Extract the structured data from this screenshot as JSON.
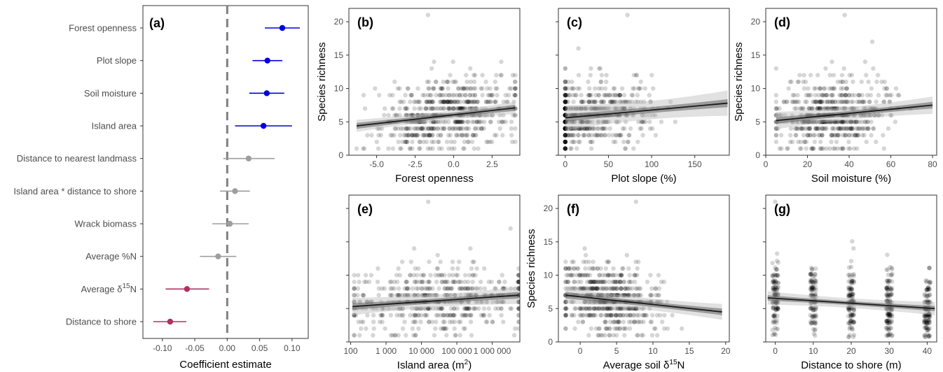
{
  "figure": {
    "background": "#ffffff",
    "point_color": "#000000",
    "ci_color": "#bdbdbd",
    "fit_color": "#1a1a1a"
  },
  "chart_data": [
    {
      "id": "a",
      "panel_label": "(a)",
      "type": "scatter",
      "subtype": "coefficient forest plot",
      "xlabel": "Coefficient estimate",
      "ylabel": "",
      "xlim": [
        -0.13,
        0.125
      ],
      "xticks": [
        -0.1,
        -0.05,
        0.0,
        0.05,
        0.1
      ],
      "xtick_labels": [
        "-0.10",
        "-0.05",
        "0.00",
        "0.05",
        "0.10"
      ],
      "zero_line": 0,
      "grid": false,
      "colors": {
        "positive": "#0000dd",
        "neutral": "#9e9e9e",
        "negative": "#b03060"
      },
      "rows": [
        {
          "label": "Forest openness",
          "label_html": "Forest openness",
          "estimate": 0.085,
          "low": 0.058,
          "high": 0.112,
          "group": "positive"
        },
        {
          "label": "Plot slope",
          "label_html": "Plot slope",
          "estimate": 0.062,
          "low": 0.039,
          "high": 0.085,
          "group": "positive"
        },
        {
          "label": "Soil moisture",
          "label_html": "Soil moisture",
          "estimate": 0.061,
          "low": 0.034,
          "high": 0.088,
          "group": "positive"
        },
        {
          "label": "Island area",
          "label_html": "Island area",
          "estimate": 0.056,
          "low": 0.012,
          "high": 0.1,
          "group": "positive"
        },
        {
          "label": "Distance to nearest landmass",
          "label_html": "Distance to nearest landmass",
          "estimate": 0.033,
          "low": -0.006,
          "high": 0.073,
          "group": "neutral"
        },
        {
          "label": "Island area * distance to shore",
          "label_html": "Island area * distance to shore",
          "estimate": 0.012,
          "low": -0.011,
          "high": 0.035,
          "group": "neutral"
        },
        {
          "label": "Wrack biomass",
          "label_html": "Wrack biomass",
          "estimate": 0.004,
          "low": -0.023,
          "high": 0.033,
          "group": "neutral"
        },
        {
          "label": "Average %N",
          "label_html": "Average %N",
          "estimate": -0.014,
          "low": -0.042,
          "high": 0.014,
          "group": "neutral"
        },
        {
          "label": "Average δ15N",
          "label_html": "Average δ<tspan dy='-6' font-size='10'>15</tspan><tspan dy='6'>N</tspan>",
          "estimate": -0.062,
          "low": -0.095,
          "high": -0.028,
          "group": "negative"
        },
        {
          "label": "Distance to shore",
          "label_html": "Distance to shore",
          "estimate": -0.088,
          "low": -0.114,
          "high": -0.063,
          "group": "negative"
        }
      ]
    },
    {
      "id": "b",
      "panel_label": "(b)",
      "type": "scatter",
      "xlabel": "Forest openness",
      "xlabel_html": "Forest openness",
      "ylabel": "Species richness",
      "show_ylabel": true,
      "show_yticks": true,
      "xlim": [
        -6.8,
        4.3
      ],
      "ylim": [
        0,
        22
      ],
      "xticks": [
        -5,
        -2.5,
        0,
        2.5
      ],
      "xtick_labels": [
        "-5.0",
        "-2.5",
        "0.0",
        "2.5"
      ],
      "yticks": [
        0,
        5,
        10,
        15,
        20
      ],
      "ytick_labels": [
        "0",
        "5",
        "10",
        "15",
        "20"
      ],
      "points": {
        "x_range": [
          -6.3,
          4.0
        ],
        "x_center": -0.5,
        "x_spread": 2.2,
        "jitter_x": false,
        "y_mean_range": [
          4.4,
          7.1
        ],
        "y_sd": 2.6,
        "y_max": 21,
        "n": 620
      },
      "fit": {
        "x": [
          -6.3,
          4.0
        ],
        "y": [
          4.4,
          7.1
        ],
        "ci_inner": 0.45,
        "ci_outer": 0.9
      }
    },
    {
      "id": "c",
      "panel_label": "(c)",
      "type": "scatter",
      "xlabel": "Plot slope (%)",
      "xlabel_html": "Plot slope (%)",
      "ylabel": "",
      "show_ylabel": false,
      "show_yticks": false,
      "xlim": [
        -8,
        190
      ],
      "ylim": [
        0,
        22
      ],
      "xticks": [
        0,
        50,
        100,
        150
      ],
      "xtick_labels": [
        "0",
        "50",
        "100",
        "150"
      ],
      "yticks": [
        0,
        5,
        10,
        15,
        20
      ],
      "ytick_labels": [],
      "points": {
        "x_range": [
          0,
          160
        ],
        "x_center": 20,
        "x_spread": 40,
        "jitter_x": false,
        "y_mean_range": [
          5.5,
          8.0
        ],
        "y_sd": 2.5,
        "y_max": 21,
        "n": 600
      },
      "fit": {
        "x": [
          0,
          188
        ],
        "y": [
          5.6,
          7.8
        ],
        "ci_inner": 0.6,
        "ci_outer": 1.9
      }
    },
    {
      "id": "d",
      "panel_label": "(d)",
      "type": "scatter",
      "xlabel": "Soil moisture (%)",
      "xlabel_html": "Soil moisture (%)",
      "ylabel": "Species richness",
      "show_ylabel": true,
      "show_yticks": true,
      "xlim": [
        0,
        82
      ],
      "ylim": [
        0,
        22
      ],
      "xticks": [
        0,
        20,
        40,
        60,
        80
      ],
      "xtick_labels": [
        "0",
        "20",
        "40",
        "60",
        "80"
      ],
      "yticks": [
        0,
        5,
        10,
        15,
        20
      ],
      "ytick_labels": [
        "0",
        "5",
        "10",
        "15",
        "20"
      ],
      "points": {
        "x_range": [
          5,
          78
        ],
        "x_center": 32,
        "x_spread": 13,
        "jitter_x": false,
        "y_mean_range": [
          5.2,
          7.5
        ],
        "y_sd": 2.5,
        "y_max": 21,
        "n": 600
      },
      "fit": {
        "x": [
          5,
          80
        ],
        "y": [
          5.2,
          7.5
        ],
        "ci_inner": 0.5,
        "ci_outer": 1.3
      }
    },
    {
      "id": "e",
      "panel_label": "(e)",
      "type": "scatter",
      "xlabel": "Island area (m2)",
      "xlabel_html": "Island area (m<tspan dy='-6' font-size='10'>2</tspan><tspan dy='6'>)</tspan>",
      "ylabel": "",
      "show_ylabel": false,
      "show_yticks": false,
      "xscale": "log",
      "xlim": [
        1.95,
        6.78
      ],
      "ylim": [
        0,
        22
      ],
      "xticks": [
        2,
        3,
        4,
        5,
        6
      ],
      "xtick_labels": [
        "100",
        "1 000",
        "10 000",
        "100 000",
        "1 000 000"
      ],
      "yticks": [
        0,
        5,
        10,
        15,
        20
      ],
      "ytick_labels": [],
      "points": {
        "x_range": [
          2.1,
          6.75
        ],
        "x_center": 4.6,
        "x_spread": 1.4,
        "jitter_x": false,
        "y_mean_range": [
          5.3,
          7.0
        ],
        "y_sd": 2.6,
        "y_max": 21,
        "n": 560
      },
      "fit": {
        "x": [
          2.05,
          6.75
        ],
        "y": [
          5.3,
          7.0
        ],
        "ci_inner": 0.5,
        "ci_outer": 1.3
      }
    },
    {
      "id": "f",
      "panel_label": "(f)",
      "type": "scatter",
      "xlabel": "Average soil δ15N",
      "xlabel_html": "Average soil δ<tspan dy='-6' font-size='10'>15</tspan><tspan dy='6'>N</tspan>",
      "ylabel": "Species richness",
      "show_ylabel": true,
      "show_yticks": true,
      "xlim": [
        -3,
        20.5
      ],
      "ylim": [
        0,
        22
      ],
      "xticks": [
        0,
        5,
        10,
        15,
        20
      ],
      "xtick_labels": [
        "0",
        "5",
        "10",
        "15",
        "20"
      ],
      "yticks": [
        0,
        5,
        10,
        15,
        20
      ],
      "ytick_labels": [
        "0",
        "5",
        "10",
        "15",
        "20"
      ],
      "points": {
        "x_range": [
          -2,
          19.5
        ],
        "x_center": 4,
        "x_spread": 3.5,
        "jitter_x": false,
        "y_mean_range": [
          7.0,
          4.5
        ],
        "y_sd": 2.6,
        "y_max": 21,
        "n": 600
      },
      "fit": {
        "x": [
          -2,
          19.5
        ],
        "y": [
          7.0,
          4.5
        ],
        "ci_inner": 0.5,
        "ci_outer": 1.2
      }
    },
    {
      "id": "g",
      "panel_label": "(g)",
      "type": "scatter",
      "xlabel": "Distance to shore (m)",
      "xlabel_html": "Distance to shore (m)",
      "ylabel": "",
      "show_ylabel": false,
      "show_yticks": false,
      "xlim": [
        -2.5,
        42.5
      ],
      "ylim": [
        0,
        22
      ],
      "xticks": [
        0,
        10,
        20,
        30,
        40
      ],
      "xtick_labels": [
        "0",
        "10",
        "20",
        "30",
        "40"
      ],
      "yticks": [
        0,
        5,
        10,
        15,
        20
      ],
      "ytick_labels": [],
      "points": {
        "x_levels": [
          0,
          10,
          20,
          30,
          40
        ],
        "jitter_x": true,
        "y_mean_range": [
          6.6,
          5.0
        ],
        "y_sd": 2.6,
        "y_max": 21,
        "n": 620
      },
      "fit": {
        "x": [
          -2,
          42
        ],
        "y": [
          6.6,
          5.0
        ],
        "ci_inner": 0.4,
        "ci_outer": 1.0
      }
    }
  ]
}
